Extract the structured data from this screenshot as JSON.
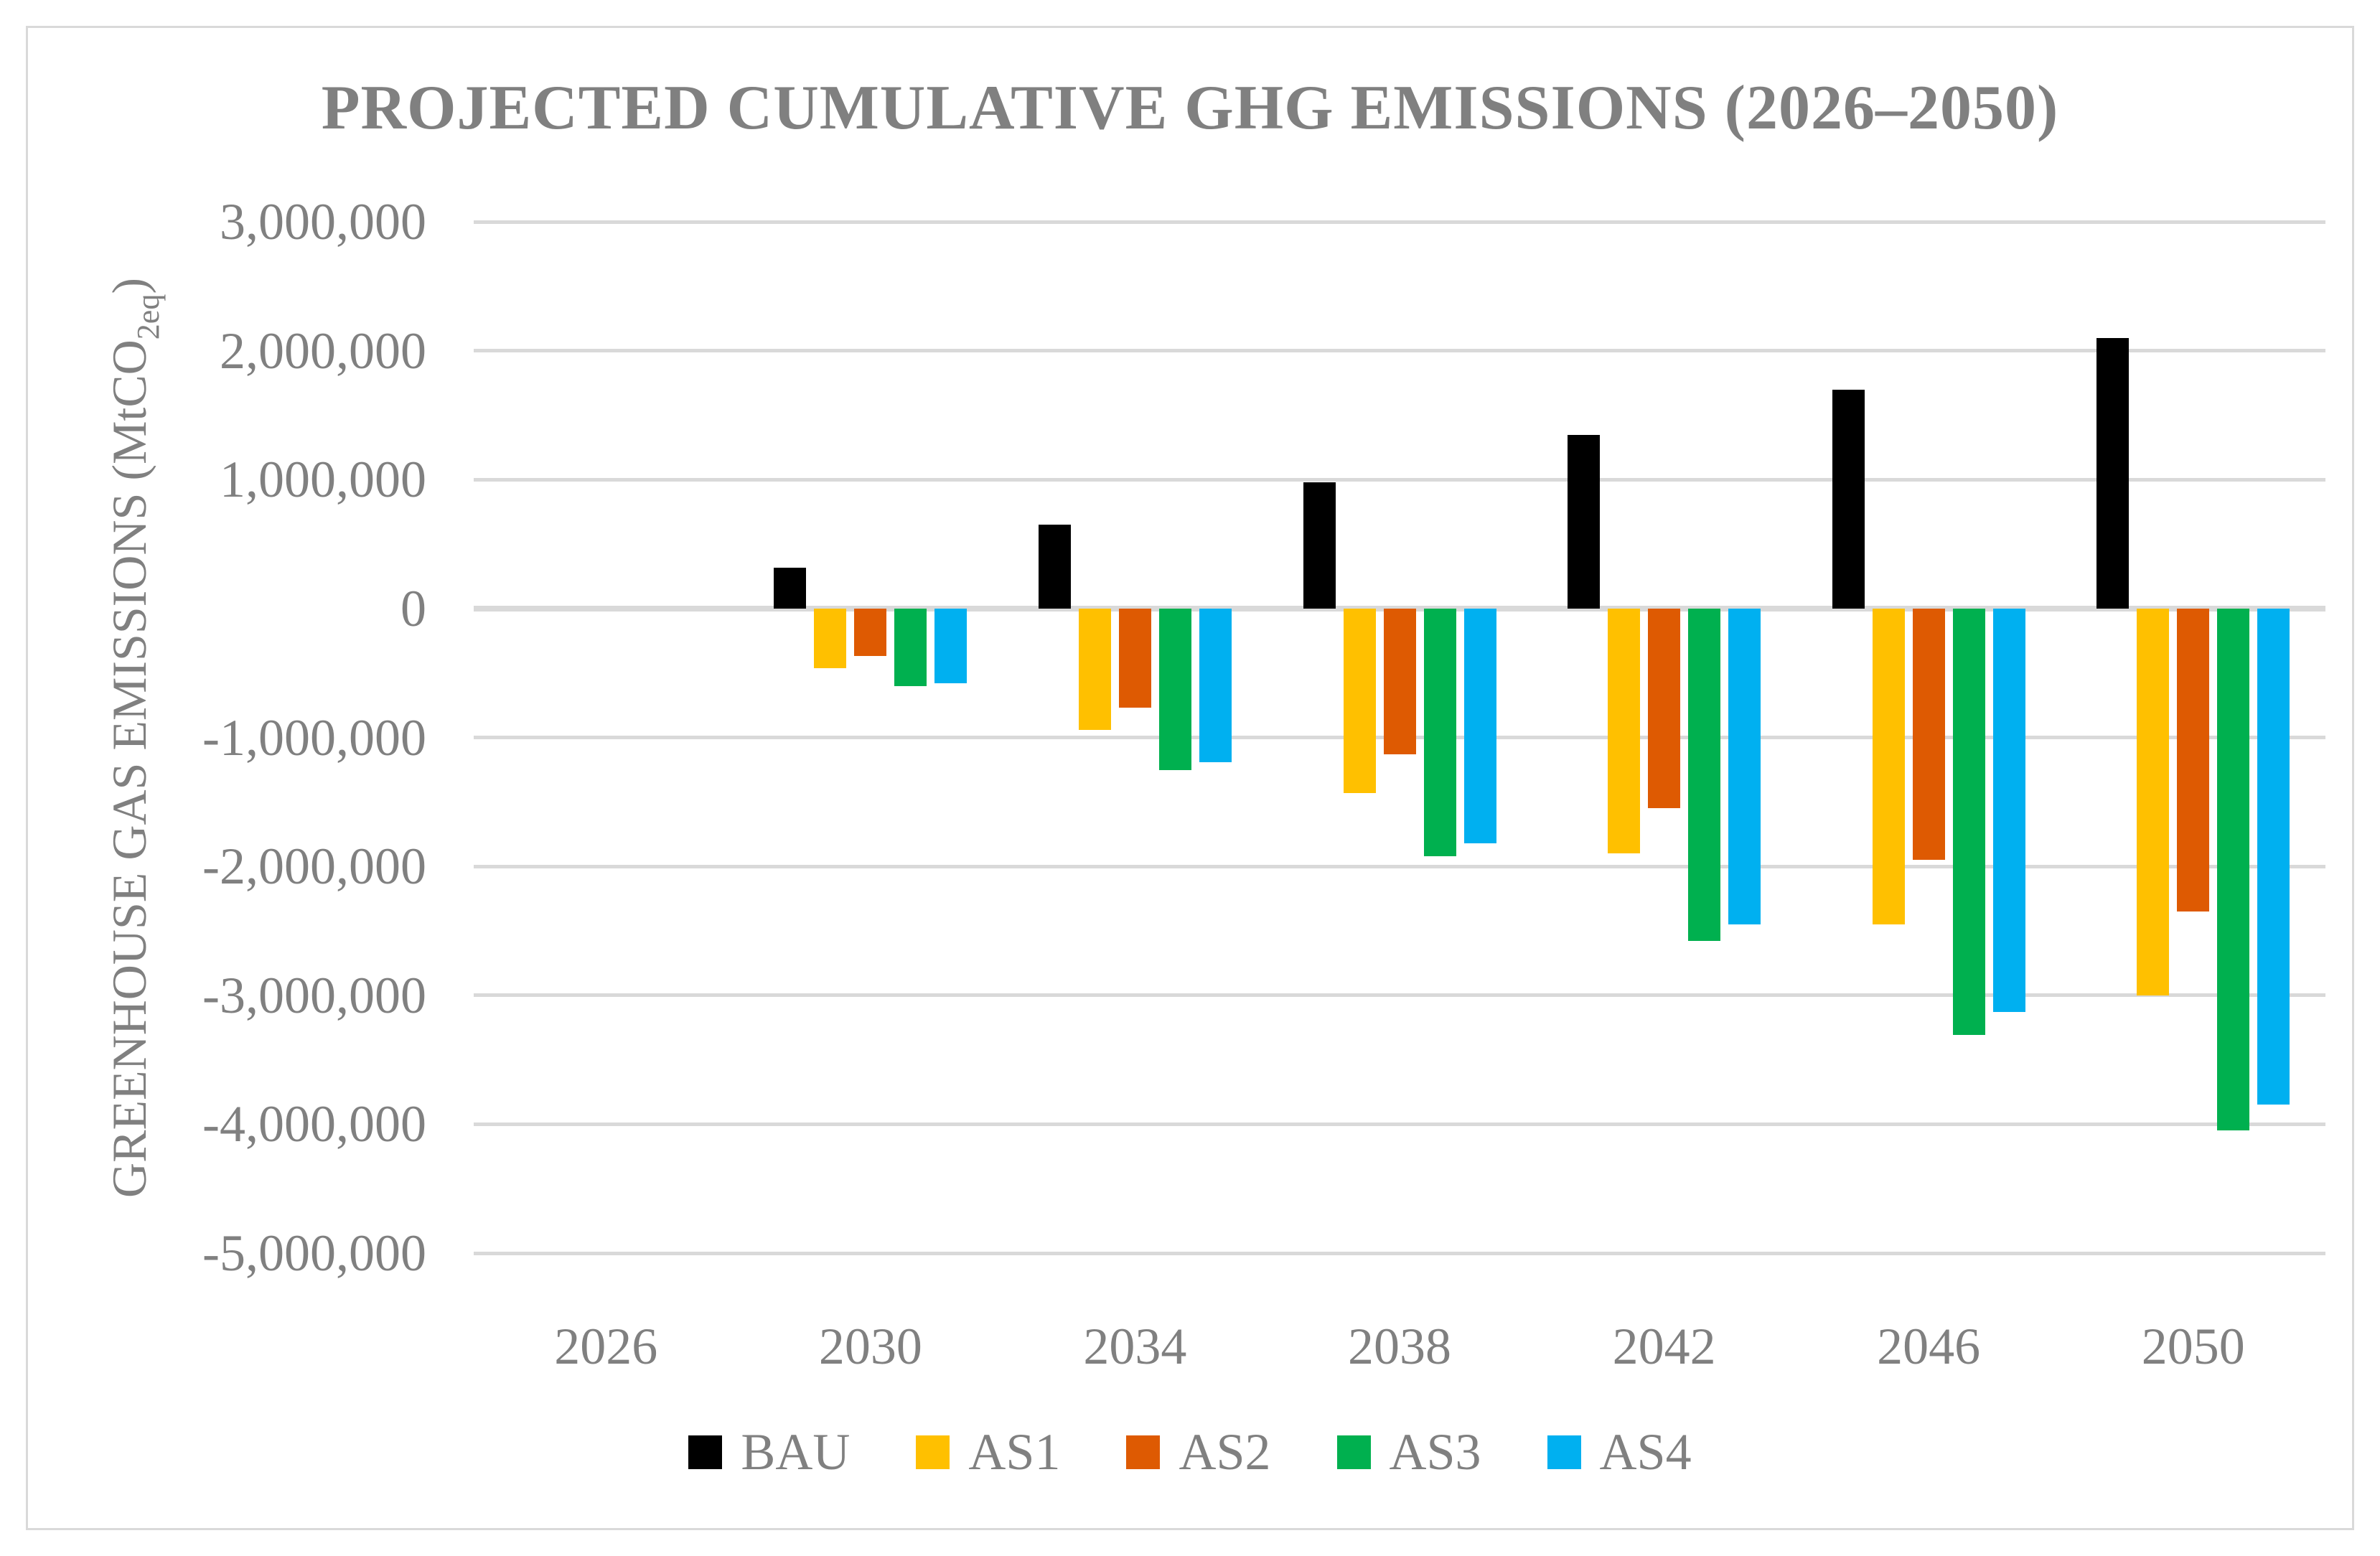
{
  "chart_data": {
    "type": "bar",
    "title": "PROJECTED CUMULATIVE GHG EMISSIONS (2026–2050)",
    "ylabel": "GREENHOUSE GAS EMISSIONS (MtCO2eq)",
    "ylabel_main": "GREENHOUSE GAS EMISSIONS (MtCO",
    "ylabel_sub": "2eq",
    "ylabel_close": ")",
    "xlabel": "",
    "categories": [
      "2026",
      "2030",
      "2034",
      "2038",
      "2042",
      "2046",
      "2050"
    ],
    "series": [
      {
        "name": "BAU",
        "color": "#000000",
        "values": [
          0,
          320000,
          650000,
          980000,
          1350000,
          1700000,
          2100000
        ]
      },
      {
        "name": "AS1",
        "color": "#FFC000",
        "values": [
          0,
          -460000,
          -940000,
          -1430000,
          -1900000,
          -2450000,
          -3000000
        ]
      },
      {
        "name": "AS2",
        "color": "#DE5A02",
        "values": [
          0,
          -370000,
          -770000,
          -1130000,
          -1550000,
          -1950000,
          -2350000
        ]
      },
      {
        "name": "AS3",
        "color": "#00B04F",
        "values": [
          0,
          -600000,
          -1250000,
          -1920000,
          -2580000,
          -3310000,
          -4050000
        ]
      },
      {
        "name": "AS4",
        "color": "#00B0F0",
        "values": [
          0,
          -580000,
          -1190000,
          -1820000,
          -2450000,
          -3130000,
          -3850000
        ]
      }
    ],
    "ylim": [
      -5000000,
      3000000
    ],
    "ytick_step": 1000000,
    "ytick_values": [
      3000000,
      2000000,
      1000000,
      0,
      -1000000,
      -2000000,
      -3000000,
      -4000000,
      -5000000
    ],
    "ytick_labels": [
      "3,000,000",
      "2,000,000",
      "1,000,000",
      "0",
      "-1,000,000",
      "-2,000,000",
      "-3,000,000",
      "-4,000,000",
      "-5,000,000"
    ],
    "grid": true,
    "gridline_color": "#D9D9D9",
    "text_color": "#808080",
    "legend_position": "bottom",
    "legend_labels": [
      "BAU",
      "AS1",
      "AS2",
      "AS3",
      "AS4"
    ]
  }
}
